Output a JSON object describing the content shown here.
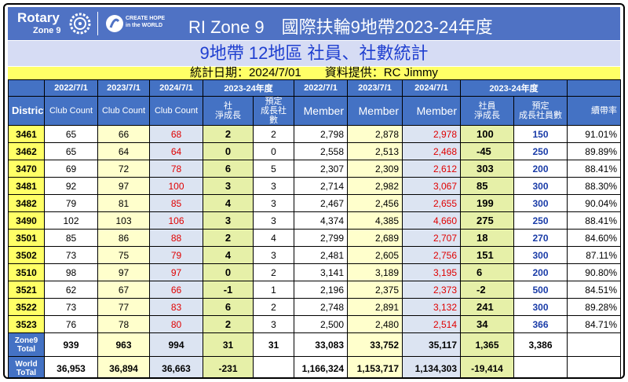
{
  "header": {
    "logo_name": "Rotary",
    "logo_zone": "Zone 9",
    "slogan": "CREATE HOPE\nin the WORLD",
    "title": "RI Zone 9　國際扶輪9地帶2023-24年度"
  },
  "subtitle": "9地帶 12地區 社員、社數統計",
  "info": "統計日期：2024/7/01　　資料提供：RC Jimmy",
  "table": {
    "group_header": [
      "2022/7/1",
      "2023/7/1",
      "2024/7/1",
      "2023-24年度",
      "2022/7/1",
      "2023/7/1",
      "2024/7/1",
      "2023-24年度"
    ],
    "columns": [
      "District",
      "Club Count",
      "Club Count",
      "Club Count",
      "社\n淨成長",
      "預定\n成長社數",
      "Member",
      "Member",
      "Member",
      "社員\n淨成長",
      "預定\n成長社員數",
      "續帶率"
    ],
    "rows": [
      [
        "3461",
        "65",
        "66",
        "68",
        "2",
        "2",
        "2,798",
        "2,878",
        "2,978",
        "100",
        "150",
        "91.01%"
      ],
      [
        "3462",
        "65",
        "64",
        "64",
        "0",
        "0",
        "2,558",
        "2,513",
        "2,468",
        "-45",
        "250",
        "89.89%"
      ],
      [
        "3470",
        "69",
        "72",
        "78",
        "6",
        "5",
        "2,307",
        "2,309",
        "2,612",
        "303",
        "200",
        "88.41%"
      ],
      [
        "3481",
        "92",
        "97",
        "100",
        "3",
        "3",
        "2,714",
        "2,982",
        "3,067",
        "85",
        "300",
        "88.30%"
      ],
      [
        "3482",
        "79",
        "81",
        "85",
        "4",
        "3",
        "2,467",
        "2,456",
        "2,655",
        "199",
        "300",
        "90.04%"
      ],
      [
        "3490",
        "102",
        "103",
        "106",
        "3",
        "3",
        "4,374",
        "4,385",
        "4,660",
        "275",
        "250",
        "88.41%"
      ],
      [
        "3501",
        "85",
        "86",
        "88",
        "2",
        "4",
        "2,799",
        "2,689",
        "2,707",
        "18",
        "270",
        "84.60%"
      ],
      [
        "3502",
        "73",
        "75",
        "79",
        "4",
        "3",
        "2,481",
        "2,605",
        "2,756",
        "151",
        "300",
        "87.11%"
      ],
      [
        "3510",
        "98",
        "97",
        "97",
        "0",
        "2",
        "3,141",
        "3,189",
        "3,195",
        "6",
        "200",
        "90.80%"
      ],
      [
        "3521",
        "62",
        "67",
        "66",
        "-1",
        "1",
        "2,196",
        "2,375",
        "2,373",
        "-2",
        "500",
        "84.51%"
      ],
      [
        "3522",
        "73",
        "77",
        "83",
        "6",
        "2",
        "2,748",
        "2,891",
        "3,132",
        "241",
        "300",
        "89.28%"
      ],
      [
        "3523",
        "76",
        "78",
        "80",
        "2",
        "3",
        "2,500",
        "2,480",
        "2,514",
        "34",
        "366",
        "84.71%"
      ]
    ],
    "totals": [
      [
        "Zone9\nTotal",
        "939",
        "963",
        "994",
        "31",
        "31",
        "33,083",
        "33,752",
        "35,117",
        "1,365",
        "3,386",
        null
      ],
      [
        "World\nToTal",
        "36,953",
        "36,894",
        "36,663",
        "-231",
        null,
        "1,166,324",
        "1,153,717",
        "1,134,303",
        "-19,414",
        null,
        null
      ]
    ]
  }
}
